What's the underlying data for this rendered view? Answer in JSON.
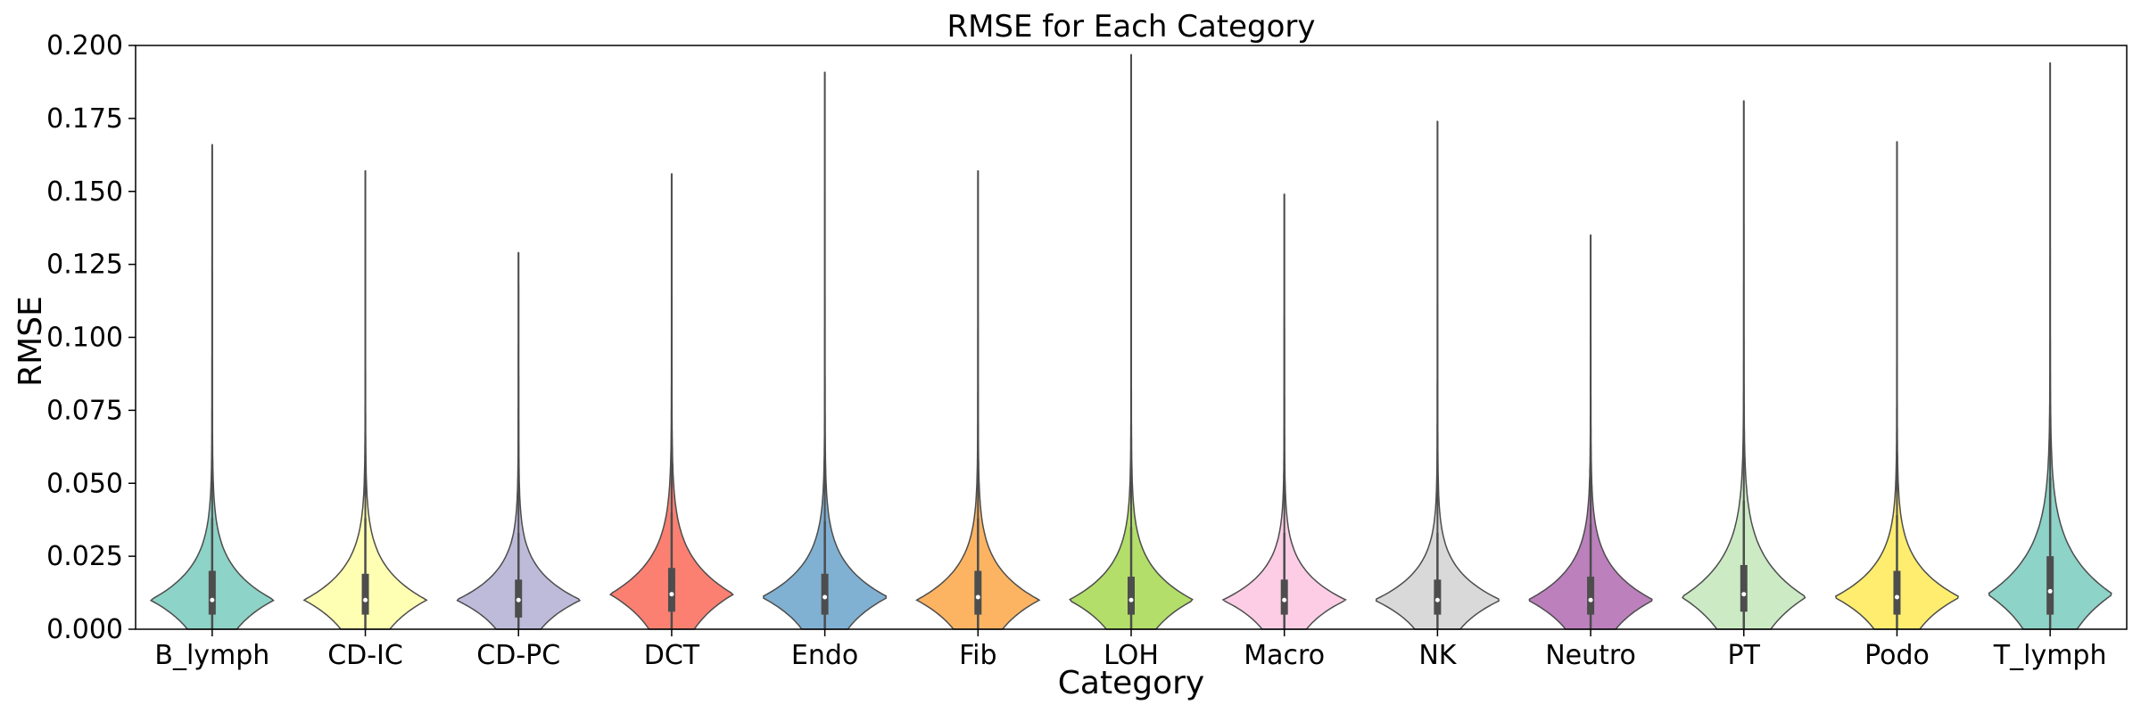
{
  "chart_data": {
    "type": "violin",
    "title": "RMSE for Each Category",
    "xlabel": "Category",
    "ylabel": "RMSE",
    "ylim": [
      0,
      0.2
    ],
    "yticks": [
      "0.000",
      "0.025",
      "0.050",
      "0.075",
      "0.100",
      "0.125",
      "0.150",
      "0.175",
      "0.200"
    ],
    "grid": false,
    "legend": "none",
    "categories": [
      "B_lymph",
      "CD-IC",
      "CD-PC",
      "DCT",
      "Endo",
      "Fib",
      "LOH",
      "Macro",
      "NK",
      "Neutro",
      "PT",
      "Podo",
      "T_lymph"
    ],
    "colors": [
      "#8dd3c7",
      "#ffffb3",
      "#bebada",
      "#fb8072",
      "#80b1d3",
      "#fdb462",
      "#b3de69",
      "#fccde5",
      "#d9d9d9",
      "#bc80bd",
      "#ccebc5",
      "#ffed6f",
      "#8dd3c7"
    ],
    "series": [
      {
        "min": 0.0,
        "q1": 0.005,
        "median": 0.01,
        "q3": 0.02,
        "whisker_high": 0.038,
        "max": 0.166,
        "mode": 0.01,
        "spread": 0.01
      },
      {
        "min": 0.0,
        "q1": 0.005,
        "median": 0.01,
        "q3": 0.019,
        "whisker_high": 0.038,
        "max": 0.157,
        "mode": 0.01,
        "spread": 0.01
      },
      {
        "min": 0.0,
        "q1": 0.004,
        "median": 0.01,
        "q3": 0.017,
        "whisker_high": 0.033,
        "max": 0.129,
        "mode": 0.01,
        "spread": 0.009
      },
      {
        "min": 0.0,
        "q1": 0.006,
        "median": 0.012,
        "q3": 0.021,
        "whisker_high": 0.04,
        "max": 0.156,
        "mode": 0.012,
        "spread": 0.011
      },
      {
        "min": 0.0,
        "q1": 0.005,
        "median": 0.011,
        "q3": 0.019,
        "whisker_high": 0.037,
        "max": 0.191,
        "mode": 0.011,
        "spread": 0.01
      },
      {
        "min": 0.0,
        "q1": 0.005,
        "median": 0.011,
        "q3": 0.02,
        "whisker_high": 0.038,
        "max": 0.157,
        "mode": 0.01,
        "spread": 0.01
      },
      {
        "min": 0.0,
        "q1": 0.005,
        "median": 0.01,
        "q3": 0.018,
        "whisker_high": 0.035,
        "max": 0.197,
        "mode": 0.01,
        "spread": 0.01
      },
      {
        "min": 0.0,
        "q1": 0.005,
        "median": 0.01,
        "q3": 0.017,
        "whisker_high": 0.033,
        "max": 0.149,
        "mode": 0.01,
        "spread": 0.009
      },
      {
        "min": 0.0,
        "q1": 0.005,
        "median": 0.01,
        "q3": 0.017,
        "whisker_high": 0.033,
        "max": 0.174,
        "mode": 0.01,
        "spread": 0.009
      },
      {
        "min": 0.0,
        "q1": 0.005,
        "median": 0.01,
        "q3": 0.018,
        "whisker_high": 0.036,
        "max": 0.135,
        "mode": 0.01,
        "spread": 0.01
      },
      {
        "min": 0.0,
        "q1": 0.006,
        "median": 0.012,
        "q3": 0.022,
        "whisker_high": 0.044,
        "max": 0.181,
        "mode": 0.011,
        "spread": 0.012
      },
      {
        "min": 0.0,
        "q1": 0.005,
        "median": 0.011,
        "q3": 0.02,
        "whisker_high": 0.039,
        "max": 0.167,
        "mode": 0.011,
        "spread": 0.01
      },
      {
        "min": 0.0,
        "q1": 0.005,
        "median": 0.013,
        "q3": 0.025,
        "whisker_high": 0.052,
        "max": 0.194,
        "mode": 0.012,
        "spread": 0.013
      }
    ]
  }
}
